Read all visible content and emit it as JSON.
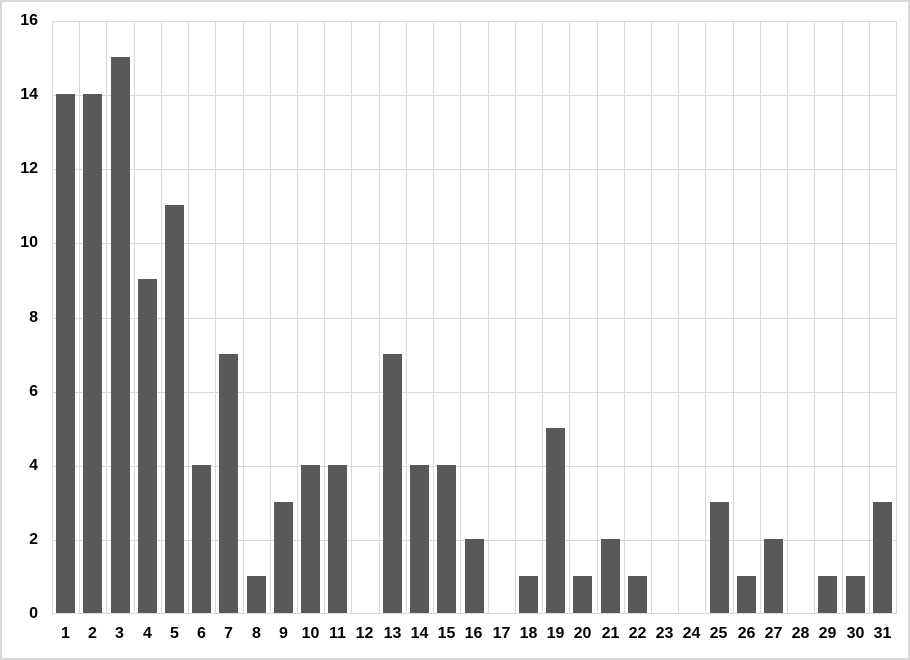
{
  "chart": {
    "title": ""
  },
  "chart_data": {
    "type": "bar",
    "title": "",
    "xlabel": "",
    "ylabel": "",
    "categories": [
      "1",
      "2",
      "3",
      "4",
      "5",
      "6",
      "7",
      "8",
      "9",
      "10",
      "11",
      "12",
      "13",
      "14",
      "15",
      "16",
      "17",
      "18",
      "19",
      "20",
      "21",
      "22",
      "23",
      "24",
      "25",
      "26",
      "27",
      "28",
      "29",
      "30",
      "31"
    ],
    "values": [
      14,
      14,
      15,
      9,
      11,
      4,
      7,
      1,
      3,
      4,
      4,
      0,
      7,
      4,
      4,
      2,
      0,
      1,
      5,
      1,
      2,
      1,
      0,
      0,
      3,
      1,
      2,
      0,
      1,
      1,
      3
    ],
    "ylim": [
      0,
      16
    ],
    "yticks": [
      0,
      2,
      4,
      6,
      8,
      10,
      12,
      14,
      16
    ],
    "grid": "both",
    "legend": "none",
    "colors": {
      "bar": "#595959",
      "gridline": "#d9d9d9",
      "axis_labels": "#000000",
      "background": "#ffffff",
      "border": "#d9d9d9"
    }
  }
}
